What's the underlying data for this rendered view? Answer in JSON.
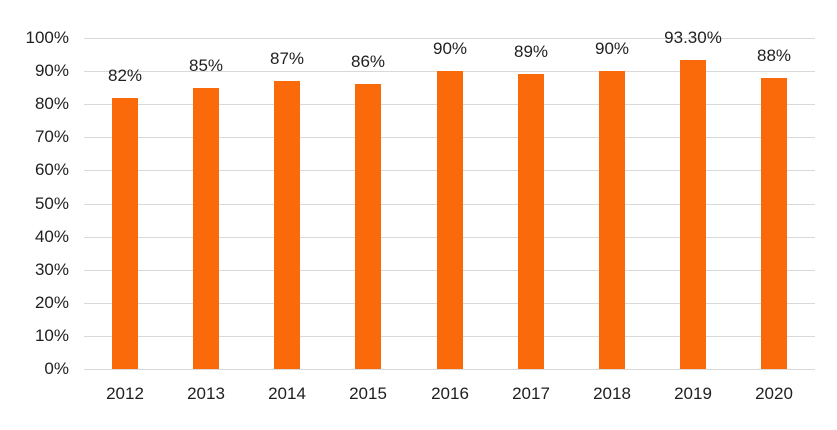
{
  "chart_data": {
    "type": "bar",
    "title": "",
    "xlabel": "",
    "ylabel": "",
    "categories": [
      "2012",
      "2013",
      "2014",
      "2015",
      "2016",
      "2017",
      "2018",
      "2019",
      "2020"
    ],
    "values": [
      82,
      85,
      87,
      86,
      90,
      89,
      90,
      93.3,
      88
    ],
    "value_labels": [
      "82%",
      "85%",
      "87%",
      "86%",
      "90%",
      "89%",
      "90%",
      "93.30%",
      "88%"
    ],
    "ylim": [
      0,
      100
    ],
    "ytick_step": 10,
    "ytick_labels": [
      "0%",
      "10%",
      "20%",
      "30%",
      "40%",
      "50%",
      "60%",
      "70%",
      "80%",
      "90%",
      "100%"
    ],
    "grid": "horizontal",
    "legend": "none",
    "colors": {
      "bar": "#FA690A",
      "gridline": "#D9D9D9",
      "text": "#1F1F1F",
      "background": "#FFFFFF"
    }
  }
}
